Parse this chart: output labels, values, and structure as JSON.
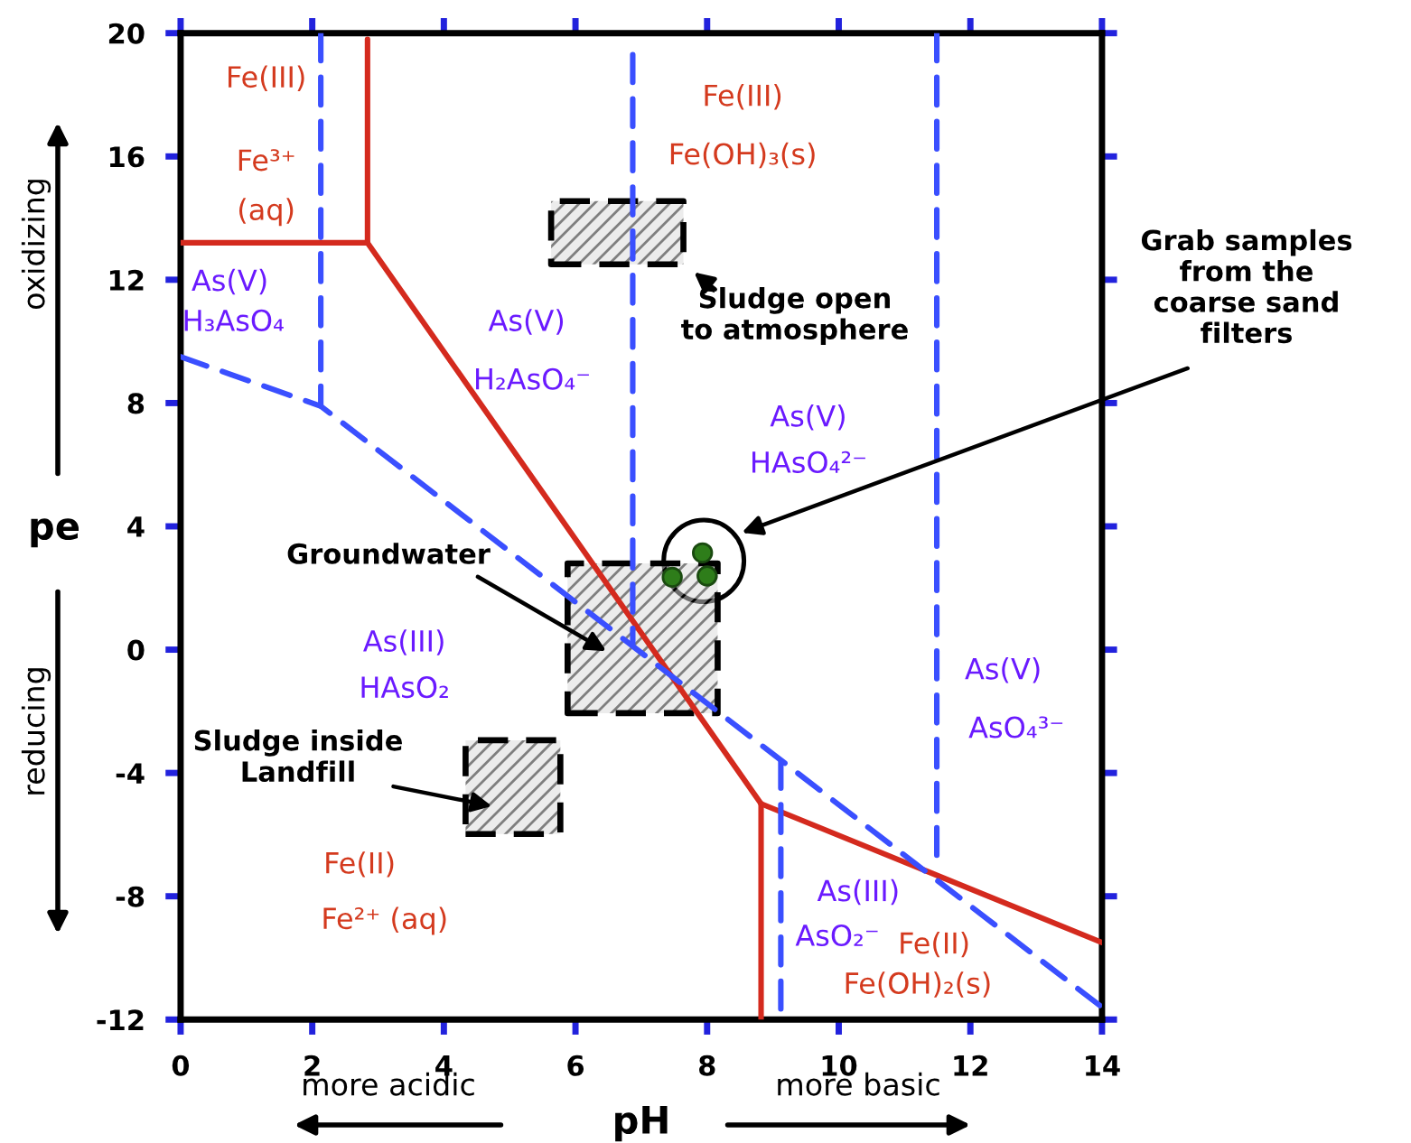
{
  "chart_data": {
    "type": "line",
    "xlabel": "pH",
    "ylabel": "pe",
    "xlim": [
      0,
      14
    ],
    "ylim": [
      -12,
      20
    ],
    "xticks": [
      0,
      2,
      4,
      6,
      8,
      10,
      12,
      14
    ],
    "yticks": [
      -12,
      -8,
      -4,
      0,
      4,
      8,
      12,
      16,
      20
    ],
    "grid": false,
    "legend": false,
    "series": [
      {
        "color": "#d42a1e",
        "line_style": "solid",
        "x": [
          0,
          2.84
        ],
        "values": [
          13.2,
          13.2
        ]
      },
      {
        "color": "#d42a1e",
        "line_style": "solid",
        "x": [
          2.84,
          2.84
        ],
        "values": [
          13.2,
          19.8
        ]
      },
      {
        "color": "#d42a1e",
        "line_style": "solid",
        "x": [
          2.84,
          8.82
        ],
        "values": [
          13.2,
          -5.0
        ]
      },
      {
        "color": "#d42a1e",
        "line_style": "solid",
        "x": [
          8.82,
          8.82
        ],
        "values": [
          -5.0,
          -12
        ]
      },
      {
        "color": "#d42a1e",
        "line_style": "solid",
        "x": [
          8.82,
          14
        ],
        "values": [
          -5.0,
          -9.5
        ]
      },
      {
        "color": "#3a4fff",
        "line_style": "dashed",
        "x": [
          0,
          2.13,
          14
        ],
        "values": [
          9.5,
          7.9,
          -11.6
        ]
      },
      {
        "color": "#3a4fff",
        "line_style": "dashed",
        "x": [
          2.13,
          2.13
        ],
        "values": [
          20,
          7.9
        ]
      },
      {
        "color": "#3a4fff",
        "line_style": "dashed",
        "x": [
          6.87,
          6.87
        ],
        "values": [
          19.3,
          0.2
        ]
      },
      {
        "color": "#3a4fff",
        "line_style": "dashed",
        "x": [
          11.49,
          11.49
        ],
        "values": [
          20,
          -7.2
        ]
      },
      {
        "color": "#3a4fff",
        "line_style": "dashed",
        "x": [
          9.12,
          9.12
        ],
        "values": [
          -3.6,
          -12
        ]
      },
      {
        "type": "area",
        "color": "#000000",
        "line_style": "dashed",
        "x": [
          5.63,
          7.64,
          7.64,
          5.63,
          5.63
        ],
        "values": [
          12.5,
          12.5,
          14.55,
          14.55,
          12.5
        ]
      },
      {
        "type": "area",
        "color": "#000000",
        "line_style": "dashed",
        "x": [
          5.88,
          8.16,
          8.16,
          5.88,
          5.88
        ],
        "values": [
          -2.06,
          -2.06,
          2.8,
          2.8,
          -2.06
        ]
      },
      {
        "type": "area",
        "color": "#000000",
        "line_style": "dashed",
        "x": [
          4.33,
          5.77,
          5.77,
          4.33,
          4.33
        ],
        "values": [
          -5.98,
          -5.98,
          -2.94,
          -2.94,
          -5.98
        ]
      },
      {
        "type": "scatter",
        "color": "#2e7d1a",
        "marker": "circle",
        "x": [
          7.47,
          7.93,
          8.0
        ],
        "values": [
          2.35,
          3.14,
          2.39
        ]
      }
    ],
    "annotations": [
      "Fe(III)",
      "Fe³⁺",
      "(aq)",
      "As(V)",
      "H₃AsO₄",
      "As(V)",
      "H₂AsO₄⁻",
      "Fe(III)",
      "Fe(OH)₃(s)",
      "As(V)",
      "HAsO₄²⁻",
      "As(III)",
      "HAsO₂",
      "Fe(II)",
      "Fe²⁺ (aq)",
      "As(V)",
      "AsO₄³⁻",
      "As(III)",
      "AsO₂⁻",
      "Fe(II)",
      "Fe(OH)₂(s)",
      "Groundwater",
      "Sludge inside\nLandfill",
      "Sludge open\nto atmosphere",
      "Grab samples\nfrom the\ncoarse sand\nfilters",
      "more acidic",
      "more basic",
      "oxidizing",
      "reducing"
    ]
  }
}
